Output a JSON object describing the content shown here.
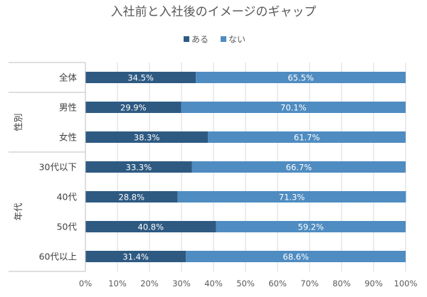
{
  "chart_data": {
    "type": "bar",
    "orientation": "horizontal",
    "stacked": "percent",
    "title": "入社前と入社後のイメージのギャップ",
    "legend_position": "top",
    "categories": [
      "全体",
      "男性",
      "女性",
      "30代以下",
      "40代",
      "50代",
      "60代以上"
    ],
    "groups": [
      {
        "label": "性別",
        "categories": [
          "男性",
          "女性"
        ]
      },
      {
        "label": "年代",
        "categories": [
          "30代以下",
          "40代",
          "50代",
          "60代以上"
        ]
      }
    ],
    "series": [
      {
        "name": "ある",
        "color": "#2E5A82",
        "values": [
          34.5,
          29.9,
          38.3,
          33.3,
          28.8,
          40.8,
          31.4
        ],
        "labels": [
          "34.5%",
          "29.9%",
          "38.3%",
          "33.3%",
          "28.8%",
          "40.8%",
          "31.4%"
        ]
      },
      {
        "name": "ない",
        "color": "#4F8CC1",
        "values": [
          65.5,
          70.1,
          61.7,
          66.7,
          71.3,
          59.2,
          68.6
        ],
        "labels": [
          "65.5%",
          "70.1%",
          "61.7%",
          "66.7%",
          "71.3%",
          "59.2%",
          "68.6%"
        ]
      }
    ],
    "xlim": [
      0,
      100
    ],
    "xticks": [
      "0%",
      "10%",
      "20%",
      "30%",
      "40%",
      "50%",
      "60%",
      "70%",
      "80%",
      "90%",
      "100%"
    ],
    "grid": true
  }
}
